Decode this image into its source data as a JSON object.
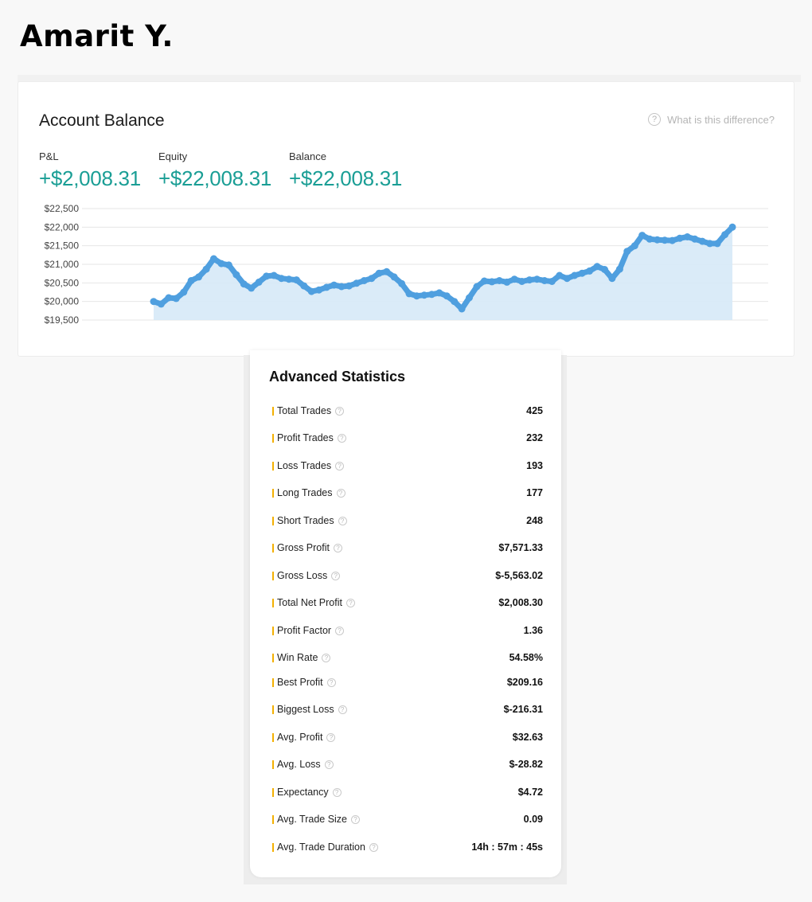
{
  "header": {
    "name": "Amarit Y."
  },
  "account": {
    "title": "Account Balance",
    "help_text": "What is this difference?",
    "help_icon": "?",
    "metrics": [
      {
        "label": "P&L",
        "value": "+$2,008.31"
      },
      {
        "label": "Equity",
        "value": "+$22,008.31"
      },
      {
        "label": "Balance",
        "value": "+$22,008.31"
      }
    ]
  },
  "chart_data": {
    "type": "area",
    "y_ticks": [
      "$22,500",
      "$22,000",
      "$21,500",
      "$21,000",
      "$20,500",
      "$20,000",
      "$19,500"
    ],
    "ylim": [
      19500,
      22500
    ],
    "grid": true,
    "color": "#4f9fdf",
    "fill": "#d6e9f7",
    "series": [
      {
        "y": [
          20000,
          19930,
          20100,
          20080,
          20250,
          20560,
          20660,
          20870,
          21150,
          21020,
          20980,
          20720,
          20470,
          20360,
          20520,
          20680,
          20700,
          20620,
          20600,
          20580,
          20420,
          20270,
          20310,
          20380,
          20440,
          20400,
          20420,
          20490,
          20560,
          20620,
          20760,
          20800,
          20660,
          20480,
          20210,
          20150,
          20170,
          20190,
          20230,
          20150,
          20000,
          19800,
          20100,
          20400,
          20550,
          20530,
          20560,
          20520,
          20600,
          20540,
          20580,
          20600,
          20560,
          20540,
          20700,
          20620,
          20700,
          20760,
          20820,
          20940,
          20860,
          20620,
          20870,
          21350,
          21500,
          21780,
          21680,
          21660,
          21650,
          21640,
          21700,
          21740,
          21680,
          21620,
          21560,
          21560,
          21800,
          22000
        ]
      }
    ]
  },
  "stats": {
    "title": "Advanced Statistics",
    "help_icon": "?",
    "rows": [
      {
        "label": "Total Trades",
        "value": "425"
      },
      {
        "label": "Profit Trades",
        "value": "232"
      },
      {
        "label": "Loss Trades",
        "value": "193"
      },
      {
        "label": "Long Trades",
        "value": "177"
      },
      {
        "label": "Short Trades",
        "value": "248"
      },
      {
        "label": "Gross Profit",
        "value": "$7,571.33"
      },
      {
        "label": "Gross Loss",
        "value": "$-5,563.02"
      },
      {
        "label": "Total Net Profit",
        "value": "$2,008.30"
      },
      {
        "label": "Profit Factor",
        "value": "1.36"
      },
      {
        "label": "Win Rate",
        "value": "54.58%"
      },
      {
        "label": "Best Profit",
        "value": "$209.16"
      },
      {
        "label": "Biggest Loss",
        "value": "$-216.31"
      },
      {
        "label": "Avg. Profit",
        "value": "$32.63"
      },
      {
        "label": "Avg. Loss",
        "value": "$-28.82"
      },
      {
        "label": "Expectancy",
        "value": "$4.72"
      },
      {
        "label": "Avg. Trade Size",
        "value": "0.09"
      },
      {
        "label": "Avg. Trade Duration",
        "value": "14h : 57m : 45s"
      }
    ]
  }
}
